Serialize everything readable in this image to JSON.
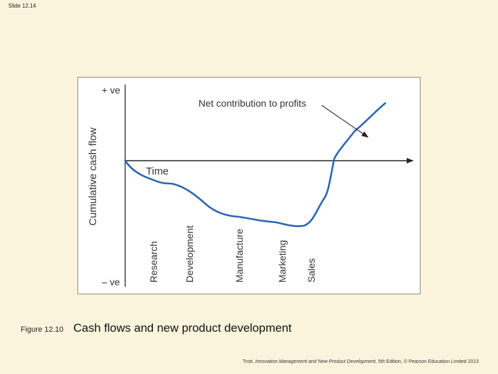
{
  "slide": {
    "number_label": "Slide 12.14"
  },
  "diagram": {
    "y_axis_label": "Cumulative cash flow",
    "y_top_label": "+ ve",
    "y_bottom_label": "– ve",
    "x_axis_label": "Time",
    "annotation": "Net contribution to profits",
    "stages": [
      "Research",
      "Development",
      "Manufacture",
      "Marketing",
      "Sales"
    ]
  },
  "caption": {
    "figure_number": "Figure 12.10",
    "title": "Cash flows and new product development"
  },
  "credit": {
    "prefix": "Trott, ",
    "book_title": "Innovation Management and New Product Development",
    "suffix": ", 5th Edition, © Pearson Education Limited 2013"
  }
}
